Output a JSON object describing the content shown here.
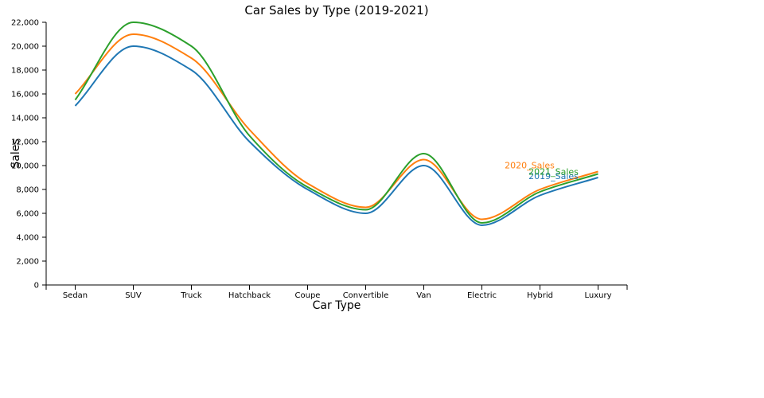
{
  "chart_data": {
    "type": "line",
    "title": "Car Sales by Type (2019-2021)",
    "xlabel": "Car Type",
    "ylabel": "Sales",
    "categories": [
      "Sedan",
      "SUV",
      "Truck",
      "Hatchback",
      "Coupe",
      "Convertible",
      "Van",
      "Electric",
      "Hybrid",
      "Luxury"
    ],
    "ylim": [
      0,
      22000
    ],
    "yticks": [
      0,
      2000,
      4000,
      6000,
      8000,
      10000,
      12000,
      14000,
      16000,
      18000,
      20000,
      22000
    ],
    "ytick_labels": [
      "0",
      "2,000",
      "4,000",
      "6,000",
      "8,000",
      "10,000",
      "12,000",
      "14,000",
      "16,000",
      "18,000",
      "20,000",
      "22,000"
    ],
    "grid": false,
    "legend": "none",
    "series": [
      {
        "name": "2019_Sales",
        "color": "#1f77b4",
        "values": [
          15000,
          20000,
          18000,
          12000,
          8000,
          6000,
          10000,
          5000,
          7500,
          9000
        ]
      },
      {
        "name": "2020_Sales",
        "color": "#ff7f0e",
        "values": [
          16000,
          21000,
          19000,
          13000,
          8500,
          6500,
          10500,
          5500,
          8000,
          9500
        ]
      },
      {
        "name": "2021_Sales",
        "color": "#2ca02c",
        "values": [
          15500,
          22000,
          20000,
          12500,
          8200,
          6300,
          11000,
          5200,
          7800,
          9300
        ]
      }
    ]
  }
}
